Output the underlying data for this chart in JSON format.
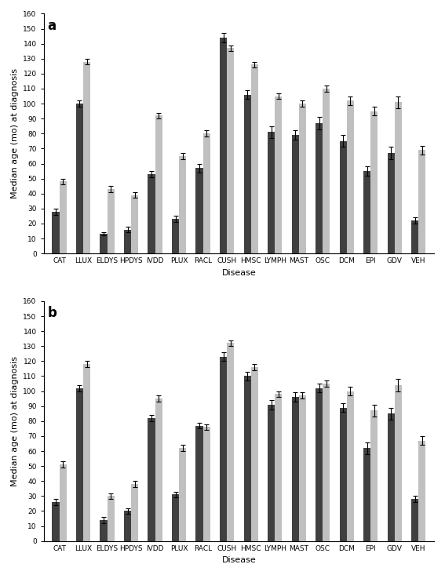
{
  "categories": [
    "CAT",
    "LLUX",
    "ELDYS",
    "HPDYS",
    "IVDD",
    "PLUX",
    "RACL",
    "CUSH",
    "HMSC",
    "LYMPH",
    "MAST",
    "OSC",
    "DCM",
    "EPI",
    "GDV",
    "VEH"
  ],
  "panel_a": {
    "dark": [
      28,
      100,
      13,
      16,
      53,
      23,
      57,
      144,
      106,
      81,
      79,
      87,
      75,
      55,
      67,
      22
    ],
    "dark_err": [
      2,
      2,
      1,
      2,
      2,
      2,
      3,
      3,
      3,
      4,
      3,
      4,
      4,
      3,
      4,
      2
    ],
    "light": [
      48,
      128,
      43,
      39,
      92,
      65,
      80,
      137,
      126,
      105,
      100,
      110,
      102,
      95,
      101,
      69
    ],
    "light_err": [
      2,
      2,
      2,
      2,
      2,
      2,
      2,
      2,
      2,
      2,
      2,
      2,
      3,
      3,
      4,
      3
    ]
  },
  "panel_b": {
    "dark": [
      26,
      102,
      14,
      20,
      82,
      31,
      77,
      123,
      110,
      91,
      96,
      102,
      89,
      62,
      85,
      28
    ],
    "dark_err": [
      2,
      2,
      2,
      2,
      2,
      2,
      2,
      3,
      3,
      3,
      3,
      3,
      3,
      4,
      4,
      2
    ],
    "light": [
      51,
      118,
      30,
      38,
      95,
      62,
      76,
      132,
      116,
      98,
      97,
      105,
      100,
      87,
      104,
      67
    ],
    "light_err": [
      2,
      2,
      2,
      2,
      2,
      2,
      2,
      2,
      2,
      2,
      2,
      2,
      3,
      4,
      4,
      3
    ]
  },
  "dark_color": "#404040",
  "light_color": "#c0c0c0",
  "ylabel": "Median age (mo) at diagnosis",
  "xlabel": "Disease",
  "ylim": [
    0,
    160
  ],
  "yticks": [
    0,
    10,
    20,
    30,
    40,
    50,
    60,
    70,
    80,
    90,
    100,
    110,
    120,
    130,
    140,
    150,
    160
  ],
  "bar_width": 0.3,
  "panel_labels": [
    "a",
    "b"
  ],
  "fontsize_tick": 6.5,
  "fontsize_label": 8,
  "fontsize_panel": 12
}
